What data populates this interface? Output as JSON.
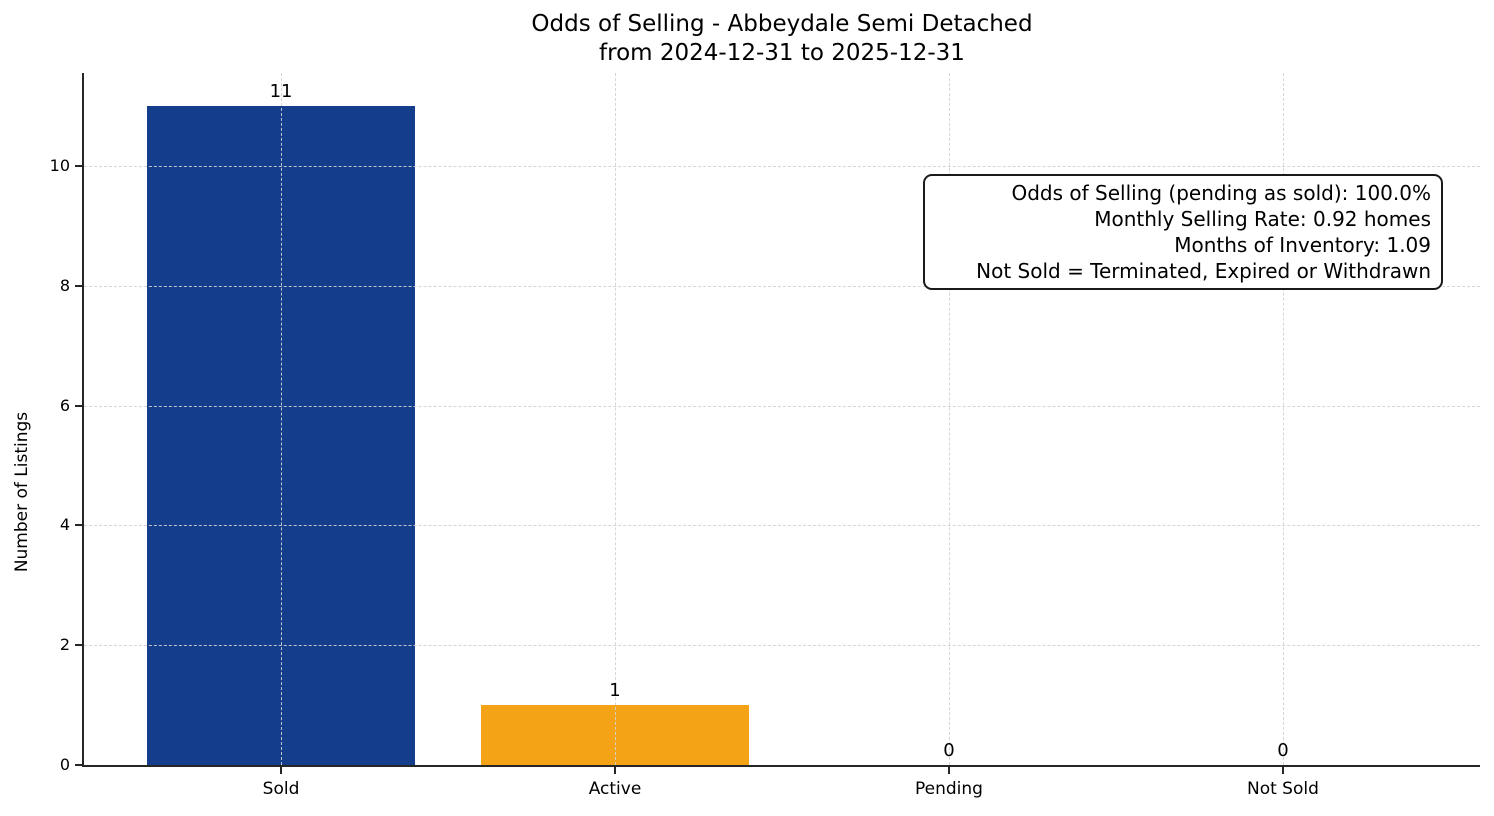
{
  "title": {
    "line1": "Odds of Selling - Abbeydale Semi Detached",
    "line2": "from 2024-12-31 to 2025-12-31"
  },
  "annotation": {
    "lines": [
      "Odds of Selling (pending as sold): 100.0%",
      "Monthly Selling Rate: 0.92 homes",
      "Months of Inventory: 1.09",
      "Not Sold = Terminated, Expired or Withdrawn"
    ]
  },
  "chart_data": {
    "type": "bar",
    "title": "Odds of Selling - Abbeydale Semi Detached\nfrom 2024-12-31 to 2025-12-31",
    "categories": [
      "Sold",
      "Active",
      "Pending",
      "Not Sold"
    ],
    "values": [
      11,
      1,
      0,
      0
    ],
    "bar_value_labels": [
      "11",
      "1",
      "0",
      "0"
    ],
    "bar_colors": [
      "#143d8c",
      "#f5a316",
      "",
      ""
    ],
    "xlabel": "",
    "ylabel": "Number of Listings",
    "ylim": [
      0,
      11.55
    ],
    "xlim": [
      -0.59,
      3.59
    ],
    "bar_width": 0.8,
    "yticks": [
      0,
      2,
      4,
      6,
      8,
      10
    ],
    "grid": "dashed, horizontal at yticks and vertical at category centers, drawn above bars",
    "legend": "none",
    "annotation_position": "top-right"
  },
  "colors": {
    "sold_bar": "#143d8c",
    "active_bar": "#f5a316",
    "grid": "#d6d6d6",
    "spine": "#262626",
    "text": "#000000",
    "annotation_border": "#1a1a1a",
    "background": "#ffffff"
  }
}
